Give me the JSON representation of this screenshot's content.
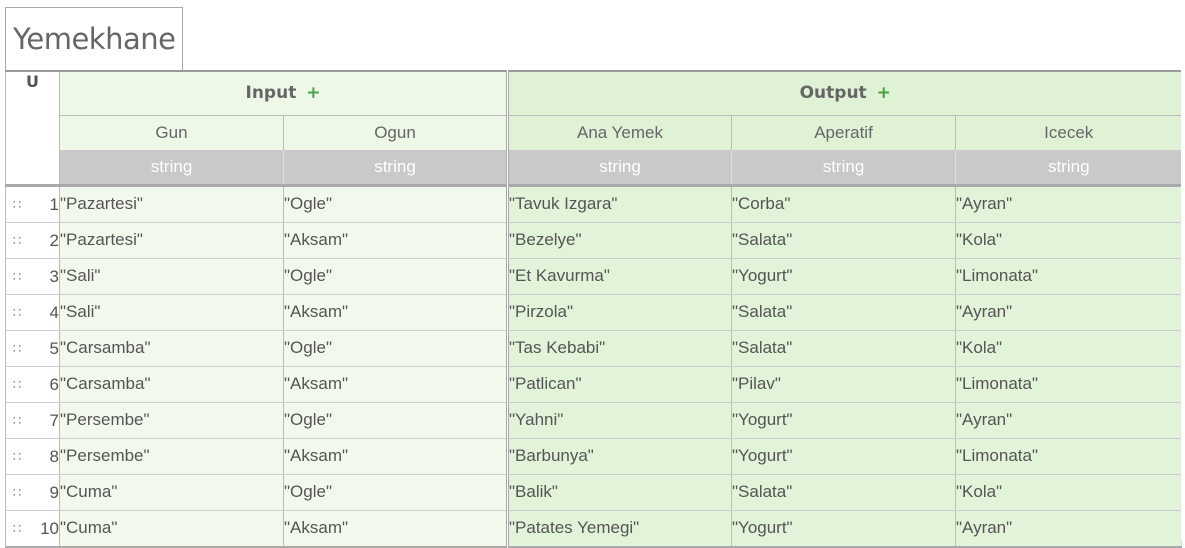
{
  "title": "Yemekhane",
  "hit_policy": "U",
  "groups": {
    "input_label": "Input",
    "output_label": "Output",
    "add_symbol": "+"
  },
  "columns": {
    "input": [
      "Gun",
      "Ogun"
    ],
    "output": [
      "Ana Yemek",
      "Aperatif",
      "Icecek"
    ]
  },
  "types": [
    "string",
    "string",
    "string",
    "string",
    "string"
  ],
  "rows": [
    {
      "n": "1",
      "cells": [
        "\"Pazartesi\"",
        "\"Ogle\"",
        "\"Tavuk Izgara\"",
        "\"Corba\"",
        "\"Ayran\""
      ]
    },
    {
      "n": "2",
      "cells": [
        "\"Pazartesi\"",
        "\"Aksam\"",
        "\"Bezelye\"",
        "\"Salata\"",
        "\"Kola\""
      ]
    },
    {
      "n": "3",
      "cells": [
        "\"Sali\"",
        "\"Ogle\"",
        "\"Et Kavurma\"",
        "\"Yogurt\"",
        "\"Limonata\""
      ]
    },
    {
      "n": "4",
      "cells": [
        "\"Sali\"",
        "\"Aksam\"",
        "\"Pirzola\"",
        "\"Salata\"",
        "\"Ayran\""
      ]
    },
    {
      "n": "5",
      "cells": [
        "\"Carsamba\"",
        "\"Ogle\"",
        "\"Tas Kebabi\"",
        "\"Salata\"",
        "\"Kola\""
      ]
    },
    {
      "n": "6",
      "cells": [
        "\"Carsamba\"",
        "\"Aksam\"",
        "\"Patlican\"",
        "\"Pilav\"",
        "\"Limonata\""
      ]
    },
    {
      "n": "7",
      "cells": [
        "\"Persembe\"",
        "\"Ogle\"",
        "\"Yahni\"",
        "\"Yogurt\"",
        "\"Ayran\""
      ]
    },
    {
      "n": "8",
      "cells": [
        "\"Persembe\"",
        "\"Aksam\"",
        "\"Barbunya\"",
        "\"Yogurt\"",
        "\"Limonata\""
      ]
    },
    {
      "n": "9",
      "cells": [
        "\"Cuma\"",
        "\"Ogle\"",
        "\"Balik\"",
        "\"Salata\"",
        "\"Kola\""
      ]
    },
    {
      "n": "10",
      "cells": [
        "\"Cuma\"",
        "\"Aksam\"",
        "\"Patates Yemegi\"",
        "\"Yogurt\"",
        "\"Ayran\""
      ]
    }
  ],
  "icons": {
    "row_handle": "drag-handle-icon"
  },
  "colors": {
    "input_bg": "#edf8e6",
    "output_bg": "#dff2d6",
    "type_row_bg": "#c9c9c9",
    "plus_accent": "#4aa042"
  }
}
